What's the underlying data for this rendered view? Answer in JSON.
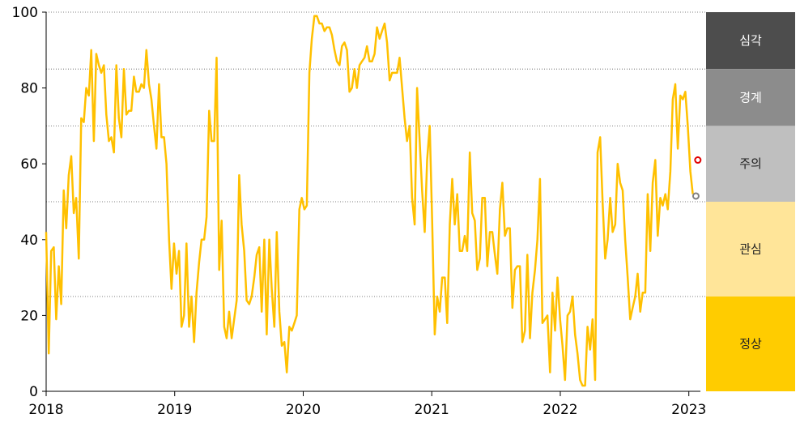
{
  "chart_data": {
    "type": "line",
    "xlim": [
      2018,
      2023.09
    ],
    "xticks": [
      2018,
      2019,
      2020,
      2021,
      2022,
      2023
    ],
    "ylim": [
      0,
      100
    ],
    "yticks": [
      0,
      20,
      40,
      60,
      80,
      100
    ],
    "series": [
      {
        "color": "#ffc000",
        "x": [
          2018,
          2018.02,
          2018.039,
          2018.059,
          2018.078,
          2018.098,
          2018.117,
          2018.137,
          2018.156,
          2018.176,
          2018.195,
          2018.215,
          2018.234,
          2018.254,
          2018.273,
          2018.293,
          2018.312,
          2018.332,
          2018.351,
          2018.371,
          2018.39,
          2018.41,
          2018.429,
          2018.449,
          2018.468,
          2018.488,
          2018.507,
          2018.527,
          2018.546,
          2018.566,
          2018.585,
          2018.605,
          2018.624,
          2018.644,
          2018.663,
          2018.683,
          2018.702,
          2018.722,
          2018.741,
          2018.761,
          2018.78,
          2018.8,
          2018.819,
          2018.839,
          2018.858,
          2018.878,
          2018.897,
          2018.917,
          2018.936,
          2018.956,
          2018.975,
          2018.995,
          2019.014,
          2019.034,
          2019.053,
          2019.073,
          2019.092,
          2019.112,
          2019.131,
          2019.151,
          2019.17,
          2019.19,
          2019.209,
          2019.229,
          2019.248,
          2019.268,
          2019.287,
          2019.307,
          2019.326,
          2019.346,
          2019.365,
          2019.385,
          2019.404,
          2019.424,
          2019.443,
          2019.463,
          2019.482,
          2019.502,
          2019.521,
          2019.541,
          2019.56,
          2019.58,
          2019.599,
          2019.619,
          2019.638,
          2019.658,
          2019.677,
          2019.697,
          2019.716,
          2019.736,
          2019.755,
          2019.775,
          2019.794,
          2019.814,
          2019.833,
          2019.853,
          2019.872,
          2019.892,
          2019.911,
          2019.931,
          2019.95,
          2019.97,
          2019.989,
          2020.009,
          2020.028,
          2020.048,
          2020.067,
          2020.087,
          2020.106,
          2020.126,
          2020.145,
          2020.165,
          2020.184,
          2020.204,
          2020.223,
          2020.243,
          2020.262,
          2020.282,
          2020.301,
          2020.321,
          2020.34,
          2020.36,
          2020.379,
          2020.399,
          2020.418,
          2020.438,
          2020.457,
          2020.477,
          2020.496,
          2020.516,
          2020.535,
          2020.555,
          2020.574,
          2020.594,
          2020.613,
          2020.633,
          2020.652,
          2020.672,
          2020.691,
          2020.711,
          2020.73,
          2020.75,
          2020.769,
          2020.789,
          2020.808,
          2020.828,
          2020.847,
          2020.867,
          2020.886,
          2020.906,
          2020.925,
          2020.945,
          2020.964,
          2020.984,
          2021.003,
          2021.023,
          2021.042,
          2021.062,
          2021.081,
          2021.101,
          2021.12,
          2021.14,
          2021.159,
          2021.179,
          2021.198,
          2021.218,
          2021.237,
          2021.257,
          2021.276,
          2021.296,
          2021.315,
          2021.335,
          2021.354,
          2021.374,
          2021.393,
          2021.413,
          2021.432,
          2021.452,
          2021.471,
          2021.491,
          2021.51,
          2021.53,
          2021.549,
          2021.569,
          2021.588,
          2021.608,
          2021.627,
          2021.647,
          2021.666,
          2021.686,
          2021.705,
          2021.725,
          2021.744,
          2021.764,
          2021.783,
          2021.803,
          2021.822,
          2021.842,
          2021.861,
          2021.881,
          2021.9,
          2021.92,
          2021.939,
          2021.959,
          2021.978,
          2021.998,
          2022.017,
          2022.037,
          2022.056,
          2022.076,
          2022.095,
          2022.115,
          2022.134,
          2022.154,
          2022.173,
          2022.193,
          2022.212,
          2022.232,
          2022.251,
          2022.271,
          2022.29,
          2022.31,
          2022.329,
          2022.349,
          2022.368,
          2022.388,
          2022.407,
          2022.427,
          2022.446,
          2022.466,
          2022.485,
          2022.505,
          2022.524,
          2022.544,
          2022.563,
          2022.583,
          2022.602,
          2022.622,
          2022.641,
          2022.661,
          2022.68,
          2022.7,
          2022.719,
          2022.739,
          2022.758,
          2022.778,
          2022.797,
          2022.817,
          2022.836,
          2022.856,
          2022.875,
          2022.895,
          2022.914,
          2022.934,
          2022.953,
          2022.973,
          2022.992,
          2023.012,
          2023.031
        ],
        "values": [
          42,
          10,
          37,
          38,
          19,
          33,
          23,
          53,
          43,
          57,
          62,
          47,
          51,
          35,
          72,
          71,
          80,
          78,
          90,
          66,
          89,
          86,
          84,
          86,
          73,
          66,
          67,
          63,
          86,
          72,
          67,
          85,
          73,
          74,
          74,
          83,
          79,
          79,
          81,
          80,
          90,
          81,
          77,
          70,
          64,
          81,
          67,
          67,
          60,
          40,
          27,
          39,
          31,
          37,
          17,
          20,
          39,
          17,
          25,
          13,
          26,
          34,
          40,
          40,
          46,
          74,
          66,
          66,
          88,
          32,
          45,
          17,
          14,
          21,
          14,
          19,
          24,
          57,
          44,
          37,
          24,
          23,
          25,
          30,
          36,
          38,
          21,
          40,
          15,
          40,
          27,
          17,
          42,
          21,
          12,
          13,
          5,
          17,
          16,
          18,
          20,
          48,
          51,
          48,
          49,
          84,
          93,
          99,
          99,
          97,
          97,
          95,
          96,
          96,
          94,
          90,
          87,
          86,
          91,
          92,
          90,
          79,
          80,
          85,
          80,
          86,
          87,
          88,
          91,
          87,
          87,
          89,
          96,
          93,
          95,
          97,
          92,
          82,
          84,
          84,
          84,
          88,
          80,
          72,
          66,
          70,
          51,
          44,
          80,
          66,
          53,
          42,
          61,
          70,
          45,
          15,
          25,
          21,
          30,
          30,
          18,
          44,
          56,
          44,
          52,
          37,
          37,
          41,
          37,
          63,
          47,
          45,
          32,
          35,
          51,
          51,
          33,
          42,
          42,
          36,
          31,
          48,
          55,
          41,
          43,
          43,
          22,
          32,
          33,
          33,
          13,
          16,
          36,
          14,
          26,
          32,
          40,
          56,
          18,
          19,
          20,
          5,
          26,
          16,
          30,
          19,
          12,
          3,
          20,
          21,
          25,
          15,
          10,
          3,
          1.5,
          1.5,
          17,
          11,
          19,
          3,
          63,
          67,
          50,
          35,
          40,
          51,
          42,
          44,
          60,
          55,
          53,
          40,
          30,
          19,
          22,
          25,
          31,
          21,
          26,
          26,
          52,
          37,
          55,
          61,
          41,
          51,
          49,
          52,
          48,
          58,
          77,
          81,
          64,
          78,
          77,
          79,
          70,
          58,
          52
        ]
      }
    ],
    "markers": [
      {
        "x": 2023.07,
        "y": 61,
        "color": "#e00000"
      },
      {
        "x": 2023.055,
        "y": 51.5,
        "color": "#808080"
      }
    ],
    "bands": [
      {
        "label": "심각",
        "from": 85,
        "to": 100,
        "color": "#4d4d4d",
        "text_color": "#ffffff"
      },
      {
        "label": "경계",
        "from": 70,
        "to": 85,
        "color": "#8c8c8c",
        "text_color": "#ffffff"
      },
      {
        "label": "주의",
        "from": 50,
        "to": 70,
        "color": "#bfbfbf",
        "text_color": "#222222"
      },
      {
        "label": "관심",
        "from": 25,
        "to": 50,
        "color": "#ffe599",
        "text_color": "#222222"
      },
      {
        "label": "정상",
        "from": 0,
        "to": 25,
        "color": "#ffcc00",
        "text_color": "#222222"
      }
    ]
  }
}
